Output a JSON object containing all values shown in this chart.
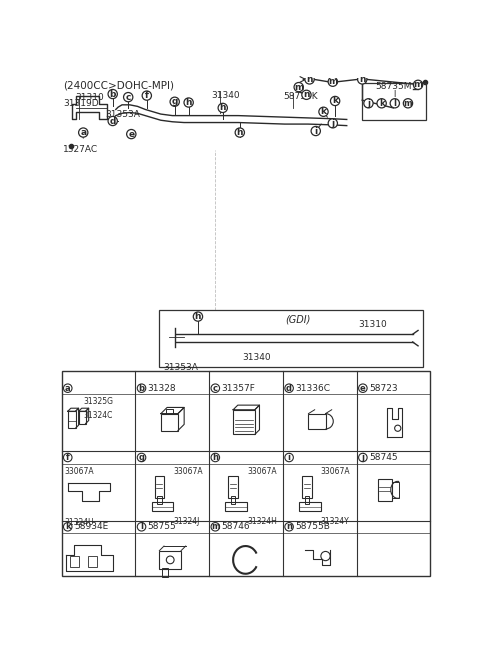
{
  "title": "(2400CC>DOHC-MPI)",
  "bg_color": "#ffffff",
  "line_color": "#2a2a2a",
  "grid_color": "#333333",
  "row1_headers": [
    [
      "a",
      ""
    ],
    [
      "b",
      "31328"
    ],
    [
      "c",
      "31357F"
    ],
    [
      "d",
      "31336C"
    ],
    [
      "e",
      "58723"
    ]
  ],
  "row2_headers": [
    [
      "f",
      ""
    ],
    [
      "g",
      ""
    ],
    [
      "h",
      ""
    ],
    [
      "i",
      ""
    ],
    [
      "j",
      "58745"
    ]
  ],
  "row3_headers": [
    [
      "k",
      "58934E"
    ],
    [
      "l",
      "58755"
    ],
    [
      "m",
      "58746"
    ],
    [
      "n",
      "58755B"
    ],
    [
      "",
      ""
    ]
  ],
  "sub_a": [
    "31325G",
    "31324C"
  ],
  "sub_f": [
    "33067A",
    "31324U"
  ],
  "sub_g": [
    "33067A",
    "31324J"
  ],
  "sub_h": [
    "33067A",
    "31324H"
  ],
  "sub_i": [
    "33067A",
    "31324Y"
  ]
}
